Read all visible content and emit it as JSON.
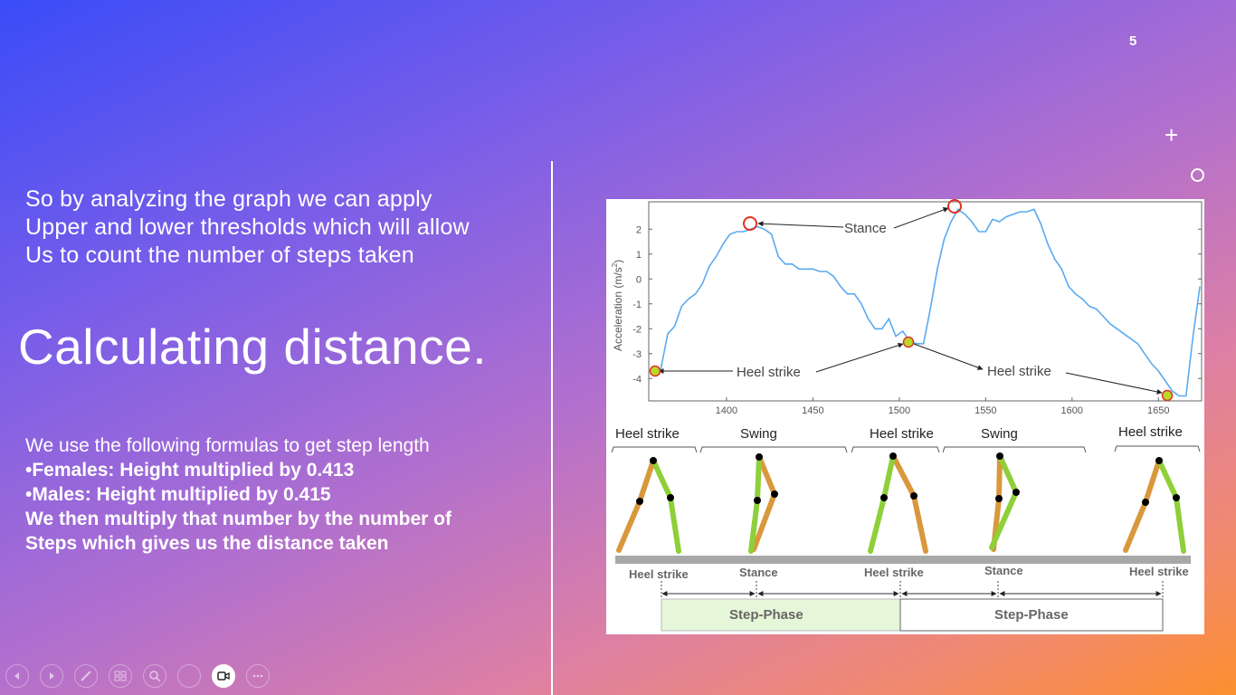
{
  "slide": {
    "number": "5",
    "intro_lines": [
      "So by analyzing the graph we can apply",
      "Upper and lower thresholds which will allow",
      "Us to count the number of steps taken"
    ],
    "heading": "Calculating distance.",
    "formula_intro": "We use the following formulas to get step length",
    "formula_lines": [
      "•Females: Height multiplied by 0.413",
      "•Males: Height multiplied by 0.415",
      "We then multiply that number by the number of",
      "Steps which gives us the distance taken"
    ]
  },
  "figure": {
    "ylabel": "Acceleration (m/s",
    "ylabel_sup": "2",
    "ylabel_close": ")",
    "x_ticks": [
      "1400",
      "1450",
      "1500",
      "1550",
      "1600",
      "1650"
    ],
    "y_ticks": [
      "2",
      "1",
      "0",
      "-1",
      "-2",
      "-3",
      "-4"
    ],
    "annotations": {
      "stance": "Stance",
      "heel_strike_1": "Heel strike",
      "heel_strike_2": "Heel strike"
    },
    "gait_top_labels": [
      "Heel strike",
      "Swing",
      "Heel strike",
      "Swing",
      "Heel strike"
    ],
    "gait_bottom_labels": [
      "Heel strike",
      "Stance",
      "Heel strike",
      "Stance",
      "Heel strike"
    ],
    "phase_labels": [
      "Step-Phase",
      "Step-Phase"
    ],
    "colors": {
      "line": "#5aaaf0",
      "thigh": "#d9983c",
      "shin": "#8fcf3a",
      "marker_ring": "#e03020",
      "marker_fill": "#b8d92a"
    }
  },
  "toolbar": {
    "buttons": [
      "previous-icon",
      "next-icon",
      "pen-icon",
      "slides-icon",
      "zoom-icon",
      "pointer-icon",
      "camera-icon",
      "more-icon"
    ]
  },
  "chart_data": {
    "type": "line",
    "xlabel": "",
    "ylabel": "Acceleration (m/s2)",
    "xlim": [
      1355,
      1675
    ],
    "ylim": [
      -4.9,
      3.1
    ],
    "x": [
      1358,
      1362,
      1366,
      1370,
      1374,
      1378,
      1382,
      1386,
      1390,
      1394,
      1398,
      1402,
      1406,
      1410,
      1414,
      1418,
      1422,
      1426,
      1430,
      1434,
      1438,
      1442,
      1446,
      1450,
      1454,
      1458,
      1462,
      1466,
      1470,
      1474,
      1478,
      1482,
      1486,
      1490,
      1494,
      1498,
      1502,
      1506,
      1510,
      1514,
      1518,
      1522,
      1526,
      1530,
      1534,
      1538,
      1542,
      1546,
      1550,
      1554,
      1558,
      1562,
      1566,
      1570,
      1574,
      1578,
      1582,
      1586,
      1590,
      1594,
      1598,
      1602,
      1606,
      1610,
      1614,
      1618,
      1622,
      1626,
      1630,
      1634,
      1638,
      1642,
      1646,
      1650,
      1654,
      1658,
      1662,
      1666,
      1670,
      1674
    ],
    "y": [
      -3.8,
      -3.6,
      -2.2,
      -1.9,
      -1.1,
      -0.8,
      -0.6,
      -0.2,
      0.5,
      0.9,
      1.4,
      1.8,
      1.9,
      1.9,
      2.0,
      2.1,
      2.0,
      1.8,
      0.9,
      0.6,
      0.6,
      0.4,
      0.4,
      0.4,
      0.3,
      0.3,
      0.1,
      -0.3,
      -0.6,
      -0.6,
      -1.0,
      -1.6,
      -2.0,
      -2.0,
      -1.6,
      -2.3,
      -2.1,
      -2.5,
      -2.6,
      -2.6,
      -1.2,
      0.4,
      1.6,
      2.3,
      2.8,
      2.6,
      2.3,
      1.9,
      1.9,
      2.4,
      2.3,
      2.5,
      2.6,
      2.7,
      2.7,
      2.8,
      2.2,
      1.4,
      0.8,
      0.4,
      -0.3,
      -0.6,
      -0.8,
      -1.1,
      -1.2,
      -1.5,
      -1.8,
      -2.0,
      -2.2,
      -2.4,
      -2.6,
      -3.0,
      -3.4,
      -3.7,
      -4.1,
      -4.5,
      -4.7,
      -4.7,
      -2.3,
      -0.3
    ]
  }
}
